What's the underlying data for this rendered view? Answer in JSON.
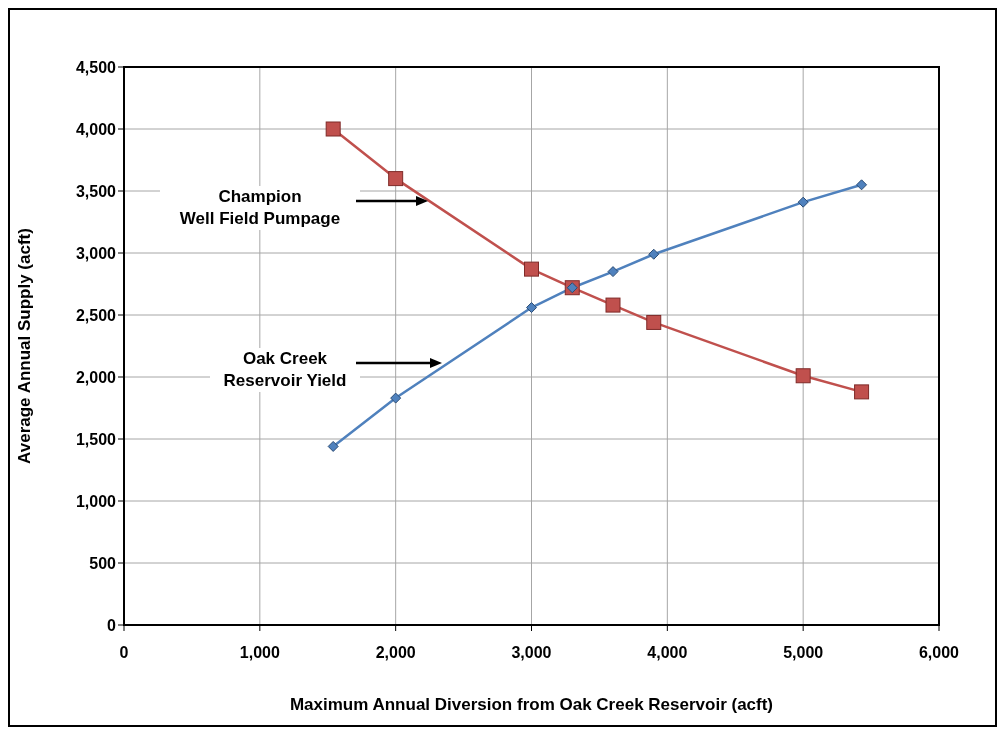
{
  "chart_data": {
    "type": "line",
    "xlabel": "Maximum Annual Diversion from Oak Creek Reservoir (acft)",
    "ylabel": "Average Annual Supply (acft)",
    "xlim": [
      0,
      6000
    ],
    "xticks": [
      0,
      {
        "value": 1000,
        "label": "1,000"
      },
      {
        "value": 2000,
        "label": "2,000"
      },
      {
        "value": 3000,
        "label": "3,000"
      },
      {
        "value": 4000,
        "label": "4,000"
      },
      {
        "value": 5000,
        "label": "5,000"
      },
      {
        "value": 6000,
        "label": "6,000"
      }
    ],
    "ylim": [
      0,
      4500
    ],
    "yticks": [
      0,
      500,
      {
        "value": 1000,
        "label": "1,000"
      },
      {
        "value": 1500,
        "label": "1,500"
      },
      {
        "value": 2000,
        "label": "2,000"
      },
      {
        "value": 2500,
        "label": "2,500"
      },
      {
        "value": 3000,
        "label": "3,000"
      },
      {
        "value": 3500,
        "label": "3,500"
      },
      {
        "value": 4000,
        "label": "4,000"
      },
      {
        "value": 4500,
        "label": "4,500"
      }
    ],
    "grid": true,
    "legend": false,
    "line_style": "solid",
    "series": [
      {
        "color": "#c0504d",
        "marker": "square",
        "x": [
          1540,
          2000,
          3000,
          3300,
          3600,
          3900,
          5000,
          5430
        ],
        "values": [
          4000,
          3600,
          2870,
          2720,
          2580,
          2440,
          2010,
          1880
        ]
      },
      {
        "color": "#4f81bd",
        "marker": "diamond",
        "x": [
          1540,
          2000,
          3000,
          3300,
          3600,
          3900,
          5000,
          5430
        ],
        "values": [
          1440,
          1830,
          2560,
          2720,
          2850,
          2990,
          3410,
          3550
        ]
      }
    ],
    "annotations": [
      "Champion\nWell Field Pumpage",
      "Oak Creek\nReservoir Yield"
    ]
  }
}
